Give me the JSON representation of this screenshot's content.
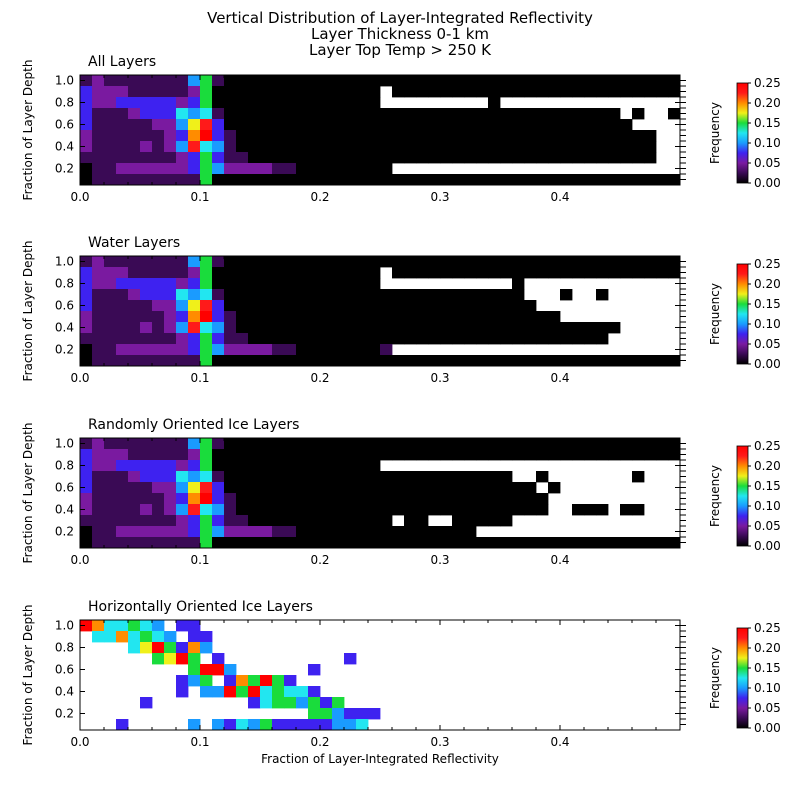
{
  "title": "Vertical Distribution of Layer-Integrated Reflectivity",
  "subtitle1": "Layer Thickness 0-1 km",
  "subtitle2": "Layer Top Temp > 250 K",
  "chart_data": [
    {
      "type": "heatmap",
      "panel_title": "All Layers",
      "xlabel": "",
      "ylabel": "Fraction of Layer Depth",
      "colorbar_label": "Frequency",
      "xlim": [
        0.0,
        0.5
      ],
      "ylim": [
        0.05,
        1.05
      ],
      "xticks": [
        "0.0",
        "0.1",
        "0.2",
        "0.3",
        "0.4"
      ],
      "yticks": [
        "0.2",
        "0.4",
        "0.6",
        "0.8",
        "1.0"
      ],
      "cbar_ticks": [
        "0.00",
        "0.05",
        "0.10",
        "0.15",
        "0.20",
        "0.25"
      ],
      "clim": [
        0.0,
        0.25
      ],
      "bin_width_x": 0.01,
      "bin_width_y": 0.1,
      "y_bins": [
        1.0,
        0.9,
        0.8,
        0.7,
        0.6,
        0.5,
        0.4,
        0.3,
        0.2,
        0.1
      ],
      "x_bins_start": 0.0,
      "grid_rows": [
        "BCBBBBBBBEGBAAAAAAAAAAAAAAAAAAAAAAAAAAAAAAAAAAAAAA",
        "DCCCBBBBBCGAAAAAAAAAAAAAA.AAAAAAAAAAAAAAAAAAAAAAAA",
        "DCCDDDDDCDGAAAAAAAAAAAAAA.........A...............",
        "DBBBCDDDFEFBAAAAAAAAAAAAAAAAAAAAAAAAAAAAAAAAA.A..A",
        "DBBBBBCCEHJDAAAAAAAAAAAAAAAAAAAAAAAAAAAAAAAAAA....",
        "CBBBBBBCDIKDBAAAAAAAAAAAAAAAAAAAAAAAAAAAAAAAAAAA..",
        "CBBBBCBCEJFEBAAAAAAAAAAAAAAAAAAAAAAAAAAAAAAAAAAA..",
        "BBBBBBBBCDGDBBAAAAAAAAAAAAAAAAAAAAAAAAAAAAAAAAAA..",
        "ABBCCCCCCDGECCCCBBAAAAAAAA........................",
        "ABBBBBBBBBGAAAAAAAAAAAAAAAAAAAAAAAAAAAAAAAAAAAAAAA"
      ],
      "legend_colors": [
        "#000000",
        "#3a0a55",
        "#7a1aa0",
        "#3e22f0",
        "#1a9bff",
        "#22e6f0",
        "#1adc3c",
        "#f0f01a",
        "#ff8c00",
        "#ff1a1a",
        "#ff0000"
      ]
    },
    {
      "type": "heatmap",
      "panel_title": "Water Layers",
      "xlabel": "",
      "ylabel": "Fraction of Layer Depth",
      "colorbar_label": "Frequency",
      "xlim": [
        0.0,
        0.5
      ],
      "ylim": [
        0.05,
        1.05
      ],
      "xticks": [
        "0.0",
        "0.1",
        "0.2",
        "0.3",
        "0.4"
      ],
      "yticks": [
        "0.2",
        "0.4",
        "0.6",
        "0.8",
        "1.0"
      ],
      "cbar_ticks": [
        "0.00",
        "0.05",
        "0.10",
        "0.15",
        "0.20",
        "0.25"
      ],
      "clim": [
        0.0,
        0.25
      ],
      "bin_width_x": 0.01,
      "bin_width_y": 0.1,
      "y_bins": [
        1.0,
        0.9,
        0.8,
        0.7,
        0.6,
        0.5,
        0.4,
        0.3,
        0.2,
        0.1
      ],
      "x_bins_start": 0.0,
      "grid_rows": [
        "BCBBBBBBBEGBAAAAAAAAAAAAAAAAAAAAAAAAAAAAAAAAAAAAAA",
        "DCCCBBBBBCGAAAAAAAAAAAAAA.AAAAAAAAAAAAAAAAAAAAAAAA",
        "DCCDDDDDCDGAAAAAAAAAAAAAA...........A.............",
        "DBBBCDDDFEFBAAAAAAAAAAAAAAAAAAAAAAAAA...A..A......",
        "DBBBBBCCEHJDAAAAAAAAAAAAAAAAAAAAAAAAAA............",
        "CBBBBBBCDIKDBAAAAAAAAAAAAAAAAAAAAAAAAAAA..........",
        "CBBBBCBCEJFEBAAAAAAAAAAAAAAAAAAAAAAAAAAAAAAAA.....",
        "BBBBBBBBCDGDBBAAAAAAAAAAAAAAAAAAAAAAAAAAAAAA......",
        "ABBCCCCCCDGECCCCBBAAAAAAAB........................",
        "ABBBBBBBBBGAAAAAAAAAAAAAAAAAAAAAAAAAAAAAAAAAAAAAAA"
      ],
      "legend_colors": [
        "#000000",
        "#3a0a55",
        "#7a1aa0",
        "#3e22f0",
        "#1a9bff",
        "#22e6f0",
        "#1adc3c",
        "#f0f01a",
        "#ff8c00",
        "#ff1a1a",
        "#ff0000"
      ]
    },
    {
      "type": "heatmap",
      "panel_title": "Randomly Oriented Ice Layers",
      "xlabel": "",
      "ylabel": "Fraction of Layer Depth",
      "colorbar_label": "Frequency",
      "xlim": [
        0.0,
        0.5
      ],
      "ylim": [
        0.05,
        1.05
      ],
      "xticks": [
        "0.0",
        "0.1",
        "0.2",
        "0.3",
        "0.4"
      ],
      "yticks": [
        "0.2",
        "0.4",
        "0.6",
        "0.8",
        "1.0"
      ],
      "cbar_ticks": [
        "0.00",
        "0.05",
        "0.10",
        "0.15",
        "0.20",
        "0.25"
      ],
      "clim": [
        0.0,
        0.25
      ],
      "bin_width_x": 0.01,
      "bin_width_y": 0.1,
      "y_bins": [
        1.0,
        0.9,
        0.8,
        0.7,
        0.6,
        0.5,
        0.4,
        0.3,
        0.2,
        0.1
      ],
      "x_bins_start": 0.0,
      "grid_rows": [
        "BCBBBBBBBEGBAAAAAAAAAAAAAAAAAAAAAAAAAAAAAAAAAAAAAA",
        "DCCCBBBBBCGAAAAAAAAAAAAAAAAAAAAAAAAAAAAAAAAAAAAAAA",
        "DCCDDDDDCDGAAAAAAAAAAAAAA.........................",
        "DBBBCDDDFEFBAAAAAAAAAAAAAAAAAAAAAAAA..A.......A...",
        "DBBBBBCCEHJDAAAAAAAAAAAAAAAAAAAAAAAAAA.A..........",
        "CBBBBBBCDIKDBAAAAAAAAAAAAAAAAAAAAAAAAAA...........",
        "CBBBBCBCEJFEBAAAAAAAAAAAAAAAAAAAAAAAAAA..AAA.AA...",
        "BBBBBBBBCDGDBBAAAAAAAAAAAA.AA..AAAAA..............",
        "ABBCCCCCCDGECCCCBBAAAAAAAAAAAAAAA.................",
        "ABBBBBBBBBGAAAAAAAAAAAAAAAAAAAAAAAAAAAAAAAAAAAAAAA"
      ],
      "legend_colors": [
        "#000000",
        "#3a0a55",
        "#7a1aa0",
        "#3e22f0",
        "#1a9bff",
        "#22e6f0",
        "#1adc3c",
        "#f0f01a",
        "#ff8c00",
        "#ff1a1a",
        "#ff0000"
      ]
    },
    {
      "type": "heatmap",
      "panel_title": "Horizontally Oriented Ice Layers",
      "xlabel": "Fraction of Layer-Integrated Reflectivity",
      "ylabel": "Fraction of Layer Depth",
      "colorbar_label": "Frequency",
      "xlim": [
        0.0,
        0.5
      ],
      "ylim": [
        0.05,
        1.05
      ],
      "xticks": [
        "0.0",
        "0.1",
        "0.2",
        "0.3",
        "0.4"
      ],
      "yticks": [
        "0.2",
        "0.4",
        "0.6",
        "0.8",
        "1.0"
      ],
      "cbar_ticks": [
        "0.00",
        "0.05",
        "0.10",
        "0.15",
        "0.20",
        "0.25"
      ],
      "clim": [
        0.0,
        0.25
      ],
      "bin_width_x": 0.01,
      "bin_width_y": 0.1,
      "y_bins": [
        1.0,
        0.9,
        0.8,
        0.7,
        0.6,
        0.5,
        0.4,
        0.3,
        0.2,
        0.1
      ],
      "x_bins_start": 0.0,
      "grid_rows": [
        "KIFFGFE.DD.........................................",
        ".FFIFGFE.DD........................................",
        "....FHKGDIE........................................",
        "......GHKG.D..........D............................",
        ".........GKKE......D...............................",
        "........DEG.DIGKGD.................................",
        "........D.EEKGKFGFFD...............................",
        ".....D........DFGGEGDG.............................",
        "...................GGEDDD..........................",
        "...D.....E.EDFEGDDDDDEEF..........................."
      ],
      "legend_colors": [
        "#000000",
        "#3a0a55",
        "#7a1aa0",
        "#3e22f0",
        "#1a9bff",
        "#22e6f0",
        "#1adc3c",
        "#f0f01a",
        "#ff8c00",
        "#ff1a1a",
        "#ff0000"
      ]
    }
  ]
}
